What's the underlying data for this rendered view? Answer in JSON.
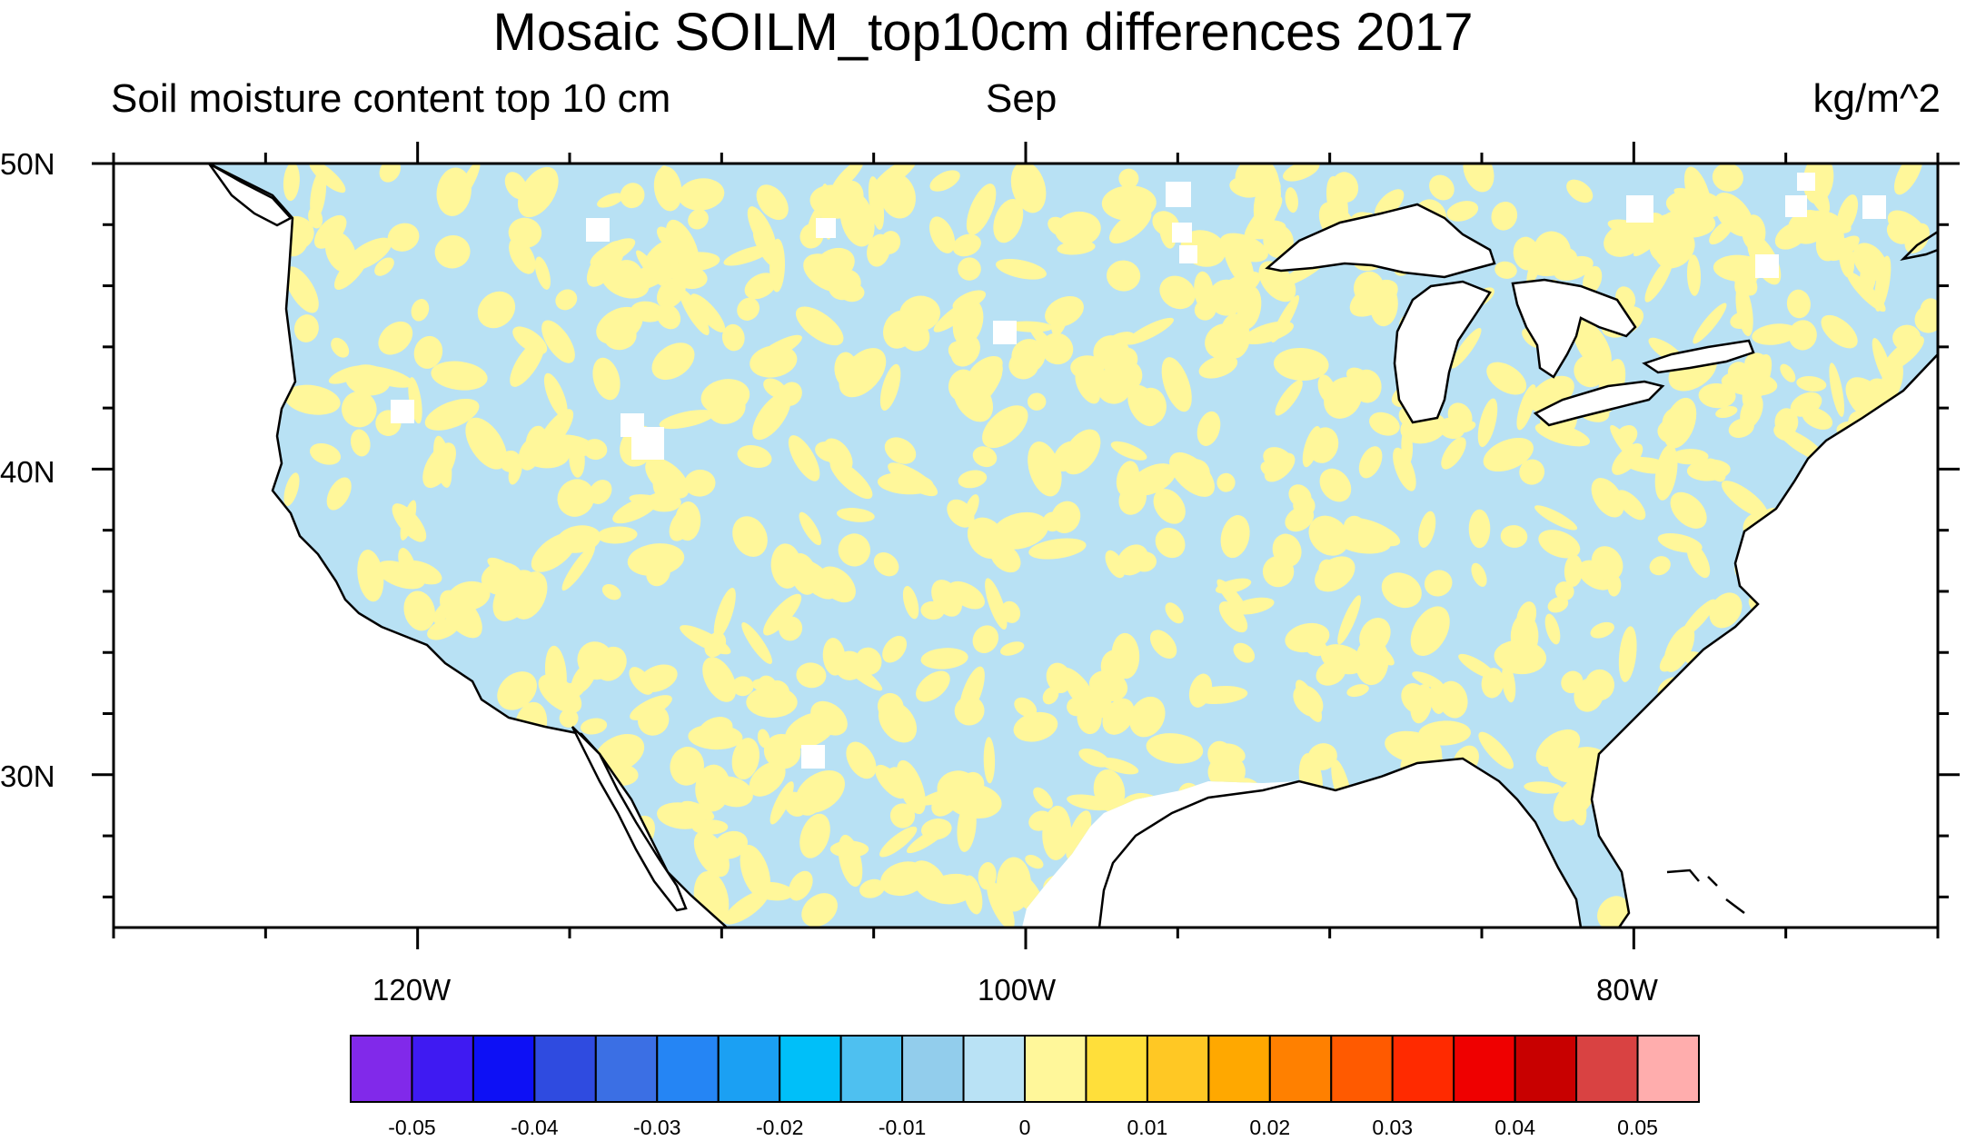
{
  "title": "Mosaic SOILM_top10cm differences 2017",
  "subtitle_left": "Soil moisture content top 10 cm",
  "subtitle_center": "Sep",
  "subtitle_right": "kg/m^2",
  "lat_labels": [
    "50N",
    "40N",
    "30N"
  ],
  "lon_labels": [
    "120W",
    "100W",
    "80W"
  ],
  "map": {
    "projection": "cylindrical equidistant",
    "lon_range": [
      -130,
      -70
    ],
    "lat_range": [
      25,
      50
    ],
    "field_colors_visible": [
      "#b8e1f4",
      "#fff79a"
    ],
    "coastline_color": "#000000"
  },
  "colorbar": {
    "labels": [
      "-0.05",
      "-0.04",
      "-0.03",
      "-0.02",
      "-0.01",
      "0",
      "0.01",
      "0.02",
      "0.03",
      "0.04",
      "0.05"
    ],
    "colors": [
      "#8129ea",
      "#3f1af2",
      "#0d10f5",
      "#2f4be0",
      "#3b6fe4",
      "#2585f4",
      "#1ba0f3",
      "#00bff9",
      "#4ec0f0",
      "#92cdec",
      "#b9e2f5",
      "#fff79a",
      "#ffdf3a",
      "#ffc824",
      "#ffa800",
      "#ff8000",
      "#ff5a00",
      "#ff2a00",
      "#ef0000",
      "#c80000",
      "#d94242",
      "#ffadad"
    ]
  }
}
